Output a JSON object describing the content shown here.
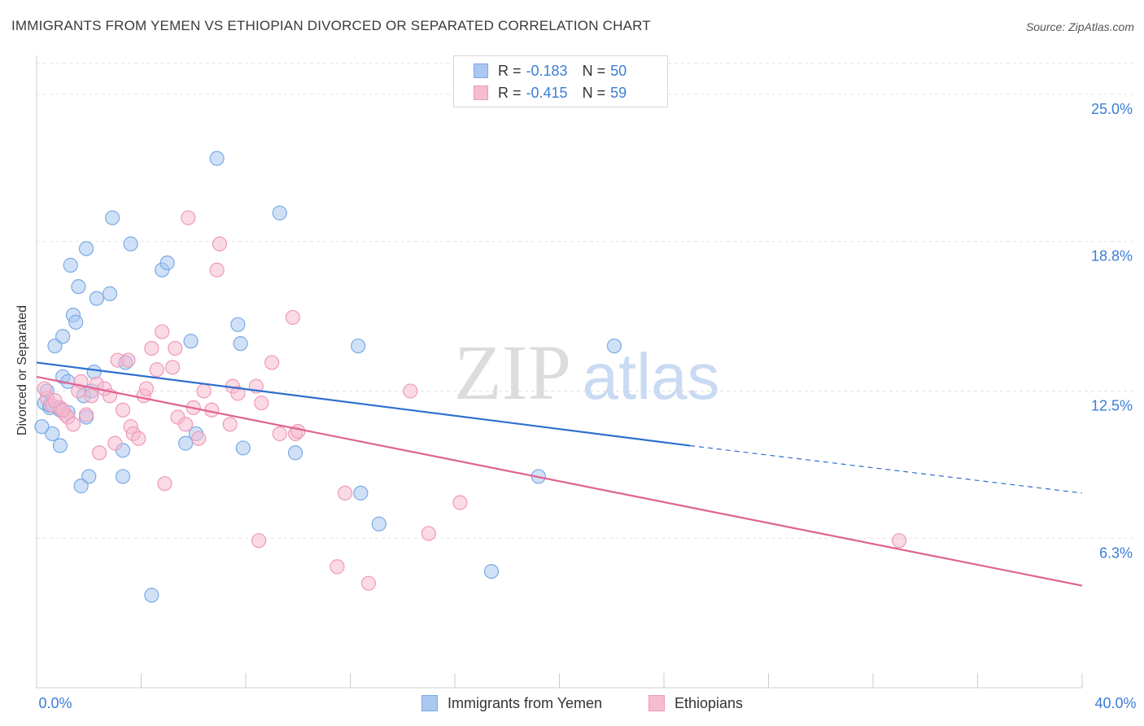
{
  "header": {
    "title": "IMMIGRANTS FROM YEMEN VS ETHIOPIAN DIVORCED OR SEPARATED CORRELATION CHART",
    "source": "Source: ZipAtlas.com"
  },
  "legend": {
    "rows": [
      {
        "r_label": "R =",
        "r_value": "-0.183",
        "n_label": "N =",
        "n_value": "50"
      },
      {
        "r_label": "R =",
        "r_value": "-0.415",
        "n_label": "N =",
        "n_value": "59"
      }
    ]
  },
  "bottom_legend": {
    "series1": "Immigrants from Yemen",
    "series2": "Ethiopians"
  },
  "colors": {
    "blue_fill": "#aac8f0",
    "blue_stroke": "#7aaae6",
    "blue_line": "#2f6fcf",
    "pink_fill": "#f6bcd0",
    "pink_stroke": "#ef9ab8",
    "pink_line": "#e0628f",
    "axis_text": "#3b7dd8",
    "grid": "#e2e2e2"
  },
  "chart_data": {
    "type": "scatter",
    "title": "IMMIGRANTS FROM YEMEN VS ETHIOPIAN DIVORCED OR SEPARATED CORRELATION CHART",
    "xlabel": "",
    "ylabel": "Divorced or Separated",
    "xlim": [
      0,
      40
    ],
    "ylim": [
      0,
      26.3
    ],
    "x_tick_labels": [
      "0.0%",
      "40.0%"
    ],
    "y_ticks": [
      6.3,
      12.5,
      18.8,
      25.0
    ],
    "y_tick_labels": [
      "6.3%",
      "12.5%",
      "18.8%",
      "25.0%"
    ],
    "grid": true,
    "legend_position": "top-center",
    "watermark": {
      "zip": "ZIP",
      "atlas": "atlas"
    },
    "series": [
      {
        "name": "Immigrants from Yemen",
        "color": "#aac8f0",
        "trend": {
          "x0": 0,
          "y0": 13.7,
          "x1": 25.0,
          "y1": 10.2,
          "dash_to_x": 40,
          "dash_to_y": 8.2
        },
        "points": [
          [
            0.3,
            12.0
          ],
          [
            0.5,
            11.8
          ],
          [
            0.8,
            11.8
          ],
          [
            0.6,
            10.7
          ],
          [
            0.2,
            11.0
          ],
          [
            0.9,
            10.2
          ],
          [
            1.0,
            13.1
          ],
          [
            1.2,
            12.9
          ],
          [
            0.7,
            14.4
          ],
          [
            1.0,
            14.8
          ],
          [
            1.4,
            15.7
          ],
          [
            1.5,
            15.4
          ],
          [
            1.3,
            17.8
          ],
          [
            1.6,
            16.9
          ],
          [
            1.9,
            18.5
          ],
          [
            2.3,
            16.4
          ],
          [
            2.8,
            16.6
          ],
          [
            2.9,
            19.8
          ],
          [
            3.6,
            18.7
          ],
          [
            4.8,
            17.6
          ],
          [
            5.0,
            17.9
          ],
          [
            3.4,
            13.7
          ],
          [
            2.2,
            13.3
          ],
          [
            1.8,
            12.3
          ],
          [
            2.1,
            12.5
          ],
          [
            1.9,
            11.4
          ],
          [
            1.2,
            11.6
          ],
          [
            2.0,
            8.9
          ],
          [
            1.7,
            8.5
          ],
          [
            3.3,
            10.0
          ],
          [
            3.3,
            8.9
          ],
          [
            4.4,
            3.9
          ],
          [
            5.7,
            10.3
          ],
          [
            6.1,
            10.7
          ],
          [
            5.9,
            14.6
          ],
          [
            6.9,
            22.3
          ],
          [
            7.7,
            15.3
          ],
          [
            7.8,
            14.5
          ],
          [
            7.9,
            10.1
          ],
          [
            9.3,
            20.0
          ],
          [
            9.9,
            9.9
          ],
          [
            12.3,
            14.4
          ],
          [
            12.4,
            8.2
          ],
          [
            13.1,
            6.9
          ],
          [
            17.4,
            4.9
          ],
          [
            19.2,
            8.9
          ],
          [
            22.1,
            14.4
          ],
          [
            0.4,
            12.5
          ],
          [
            0.5,
            11.9
          ],
          [
            0.9,
            11.7
          ]
        ]
      },
      {
        "name": "Ethiopians",
        "color": "#f6bcd0",
        "trend": {
          "x0": 0,
          "y0": 13.1,
          "x1": 40,
          "y1": 4.3
        },
        "points": [
          [
            0.4,
            12.2
          ],
          [
            0.6,
            11.9
          ],
          [
            0.9,
            11.8
          ],
          [
            0.7,
            12.1
          ],
          [
            1.1,
            11.5
          ],
          [
            1.2,
            11.4
          ],
          [
            1.4,
            11.1
          ],
          [
            1.6,
            12.5
          ],
          [
            1.7,
            12.9
          ],
          [
            1.9,
            11.5
          ],
          [
            2.1,
            12.3
          ],
          [
            2.3,
            12.8
          ],
          [
            2.4,
            9.9
          ],
          [
            2.6,
            12.6
          ],
          [
            2.8,
            12.3
          ],
          [
            3.0,
            10.3
          ],
          [
            3.1,
            13.8
          ],
          [
            3.3,
            11.7
          ],
          [
            3.5,
            13.8
          ],
          [
            3.6,
            11.0
          ],
          [
            3.7,
            10.7
          ],
          [
            3.9,
            10.5
          ],
          [
            4.1,
            12.3
          ],
          [
            4.2,
            12.6
          ],
          [
            4.4,
            14.3
          ],
          [
            4.6,
            13.4
          ],
          [
            4.8,
            15.0
          ],
          [
            4.9,
            8.6
          ],
          [
            5.2,
            13.5
          ],
          [
            5.3,
            14.3
          ],
          [
            5.4,
            11.4
          ],
          [
            5.7,
            11.1
          ],
          [
            5.8,
            19.8
          ],
          [
            6.0,
            11.8
          ],
          [
            6.2,
            10.5
          ],
          [
            6.4,
            12.5
          ],
          [
            6.7,
            11.7
          ],
          [
            6.9,
            17.6
          ],
          [
            7.0,
            18.7
          ],
          [
            7.4,
            11.1
          ],
          [
            7.5,
            12.7
          ],
          [
            7.7,
            12.4
          ],
          [
            8.4,
            12.7
          ],
          [
            8.6,
            12.0
          ],
          [
            9.0,
            13.7
          ],
          [
            9.3,
            10.7
          ],
          [
            9.8,
            15.6
          ],
          [
            9.9,
            10.7
          ],
          [
            8.5,
            6.2
          ],
          [
            10.0,
            10.8
          ],
          [
            11.5,
            5.1
          ],
          [
            11.8,
            8.2
          ],
          [
            12.7,
            4.4
          ],
          [
            14.3,
            12.5
          ],
          [
            15.0,
            6.5
          ],
          [
            16.2,
            7.8
          ],
          [
            33.0,
            6.2
          ],
          [
            0.3,
            12.6
          ],
          [
            1.0,
            11.7
          ]
        ]
      }
    ]
  }
}
